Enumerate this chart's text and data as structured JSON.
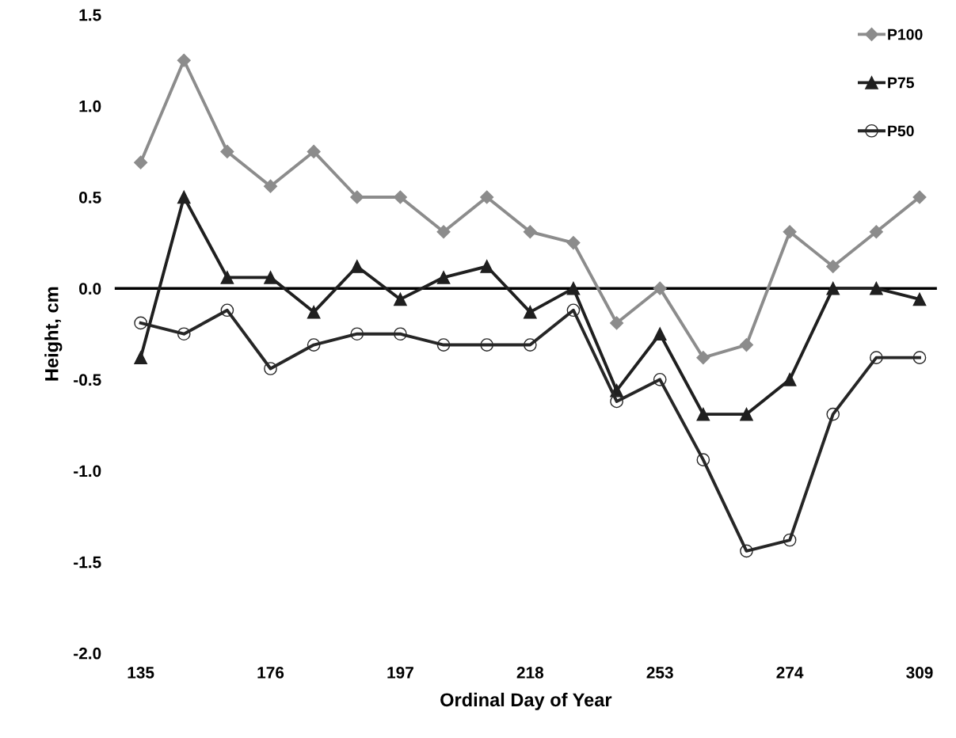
{
  "chart_data": {
    "type": "line",
    "xlabel": "Ordinal Day of Year",
    "ylabel": "Height, cm",
    "categories": [
      "135",
      null,
      null,
      "176",
      null,
      null,
      "197",
      null,
      null,
      "218",
      null,
      null,
      "253",
      null,
      null,
      "274",
      null,
      null,
      "309"
    ],
    "series": [
      {
        "name": "P100",
        "color": "#8c8c8c",
        "marker": "diamond",
        "values": [
          0.69,
          1.25,
          0.75,
          0.56,
          0.75,
          0.5,
          0.5,
          0.31,
          0.5,
          0.31,
          0.25,
          -0.19,
          0,
          -0.38,
          -0.31,
          0.31,
          0.12,
          0.31,
          0.5
        ]
      },
      {
        "name": "P75",
        "color": "#1f1f1f",
        "marker": "triangle",
        "values": [
          -0.38,
          0.5,
          0.06,
          0.06,
          -0.13,
          0.12,
          -0.06,
          0.06,
          0.12,
          -0.13,
          0,
          -0.56,
          -0.25,
          -0.69,
          -0.69,
          -0.5,
          0,
          0,
          -0.06
        ]
      },
      {
        "name": "P50",
        "color": "#262626",
        "marker": "circle",
        "values": [
          -0.19,
          -0.25,
          -0.12,
          -0.44,
          -0.31,
          -0.25,
          -0.25,
          -0.31,
          -0.31,
          -0.31,
          -0.12,
          -0.62,
          -0.5,
          -0.94,
          -1.44,
          -1.38,
          -0.69,
          -0.38,
          -0.38
        ]
      }
    ],
    "ylim": [
      -2.0,
      1.5
    ],
    "yticks": [
      {
        "value": -2.0,
        "label": "-2.0"
      },
      {
        "value": -1.5,
        "label": "-1.5"
      },
      {
        "value": -1.0,
        "label": "-1.0"
      },
      {
        "value": -0.5,
        "label": "-0.5"
      },
      {
        "value": 0.0,
        "label": "0.0"
      },
      {
        "value": 0.5,
        "label": "0.5"
      },
      {
        "value": 1.0,
        "label": "1.0"
      },
      {
        "value": 1.5,
        "label": "1.5"
      }
    ],
    "ref_lines": [
      {
        "axis": "y",
        "value": 0,
        "color": "#000000"
      }
    ],
    "legend": "top right",
    "line_style": "solid"
  }
}
